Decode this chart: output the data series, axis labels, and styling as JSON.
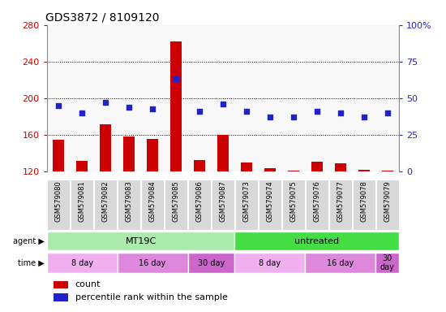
{
  "title": "GDS3872 / 8109120",
  "samples": [
    "GSM579080",
    "GSM579081",
    "GSM579082",
    "GSM579083",
    "GSM579084",
    "GSM579085",
    "GSM579086",
    "GSM579087",
    "GSM579073",
    "GSM579074",
    "GSM579075",
    "GSM579076",
    "GSM579077",
    "GSM579078",
    "GSM579079"
  ],
  "counts": [
    155,
    132,
    172,
    158,
    156,
    262,
    133,
    160,
    130,
    124,
    121,
    131,
    129,
    122,
    121
  ],
  "percentiles": [
    45,
    40,
    47,
    44,
    43,
    63,
    41,
    46,
    41,
    37,
    37,
    41,
    40,
    37,
    40
  ],
  "ylim_left": [
    120,
    280
  ],
  "ylim_right": [
    0,
    100
  ],
  "yticks_left": [
    120,
    160,
    200,
    240,
    280
  ],
  "yticks_right": [
    0,
    25,
    50,
    75,
    100
  ],
  "ytick_right_labels": [
    "0",
    "25",
    "50",
    "75",
    "100%"
  ],
  "bar_color": "#cc0000",
  "dot_color": "#2222cc",
  "bar_bottom": 120,
  "agent_groups": [
    {
      "label": "MT19C",
      "start": 0,
      "end": 8,
      "color": "#aaeaaa"
    },
    {
      "label": "untreated",
      "start": 8,
      "end": 15,
      "color": "#44dd44"
    }
  ],
  "time_groups": [
    {
      "label": "8 day",
      "start": 0,
      "end": 3,
      "color": "#f0b0f0"
    },
    {
      "label": "16 day",
      "start": 3,
      "end": 6,
      "color": "#dd88dd"
    },
    {
      "label": "30 day",
      "start": 6,
      "end": 8,
      "color": "#cc66cc"
    },
    {
      "label": "8 day",
      "start": 8,
      "end": 11,
      "color": "#f0b0f0"
    },
    {
      "label": "16 day",
      "start": 11,
      "end": 14,
      "color": "#dd88dd"
    },
    {
      "label": "30 day",
      "start": 14,
      "end": 15,
      "color": "#cc66cc"
    }
  ],
  "legend_count_label": "count",
  "legend_pct_label": "percentile rank within the sample",
  "dotted_grid": [
    160,
    200,
    240
  ],
  "background_color": "#ffffff",
  "plot_bg": "#ffffff",
  "tick_label_color_left": "#cc0000",
  "tick_label_color_right": "#2222cc",
  "sample_bg": "#d8d8d8",
  "plot_area_bg": "#f8f8f8"
}
